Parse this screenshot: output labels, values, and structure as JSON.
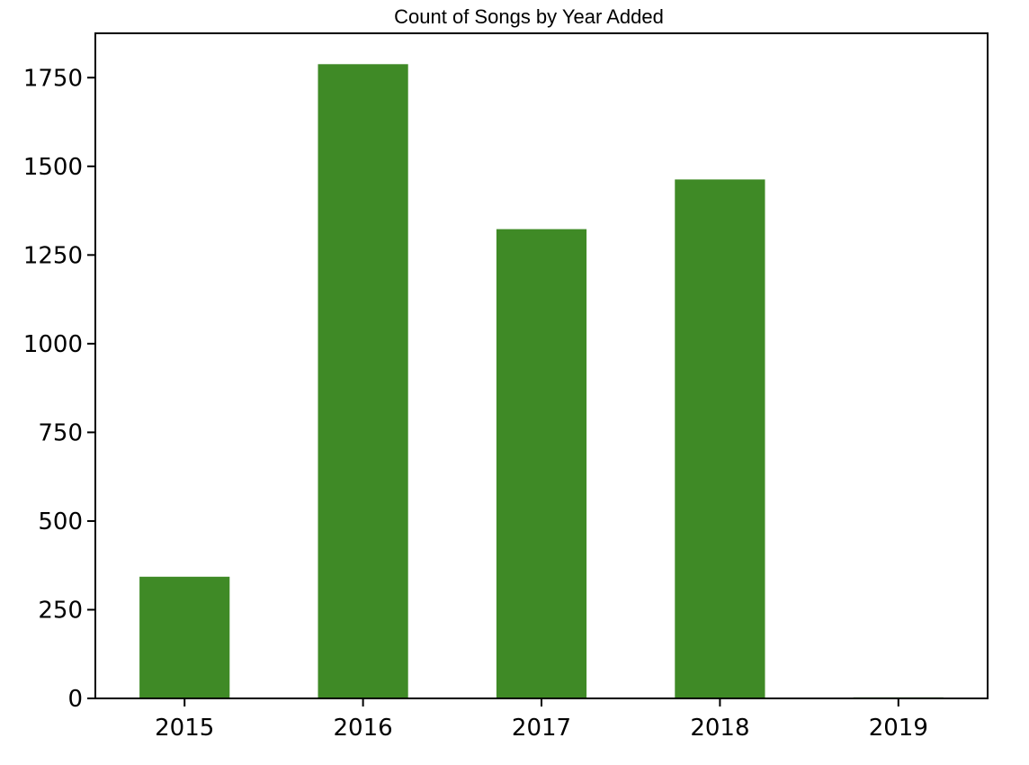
{
  "chart_data": {
    "type": "bar",
    "title": "Count of Songs by Year Added",
    "xlabel": "",
    "ylabel": "",
    "categories": [
      "2015",
      "2016",
      "2017",
      "2018",
      "2019"
    ],
    "values": [
      343,
      1788,
      1323,
      1463,
      3
    ],
    "ylim": [
      0,
      1875
    ],
    "yticks": [
      0,
      250,
      500,
      750,
      1000,
      1250,
      1500,
      1750
    ],
    "ytick_labels": [
      "0",
      "250",
      "500",
      "750",
      "1000",
      "1250",
      "1500",
      "1750"
    ],
    "grid": false,
    "legend": "none",
    "bar_color": "#3f8a26"
  }
}
